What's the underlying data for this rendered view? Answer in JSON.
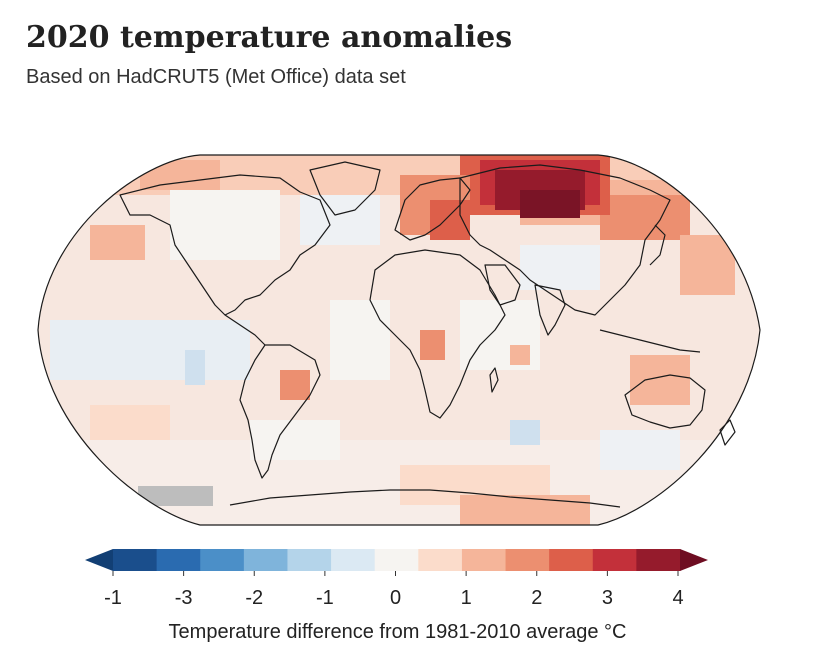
{
  "header": {
    "title": "2020 temperature anomalies",
    "subtitle": "Based on HadCRUT5 (Met Office) data set"
  },
  "legend": {
    "title": "Temperature difference from 1981-2010 average °C",
    "tick_labels": [
      "-1",
      "-3",
      "-2",
      "-1",
      "0",
      "1",
      "2",
      "3",
      "4"
    ],
    "colors": [
      "#1a4e8c",
      "#2a6bb0",
      "#4b8fc8",
      "#7fb4db",
      "#b4d4ea",
      "#dbe9f3",
      "#f6f4f1",
      "#fbdccb",
      "#f5b59a",
      "#ec8f70",
      "#dd5f4a",
      "#c3303a",
      "#951b2c"
    ],
    "low_arrow_color": "#123f74",
    "high_arrow_color": "#6e0d22"
  },
  "map": {
    "ocean_base_color": "#f7e7df",
    "outline_color": "#1b1b1b",
    "no_data_color": "#bdbdbd"
  }
}
